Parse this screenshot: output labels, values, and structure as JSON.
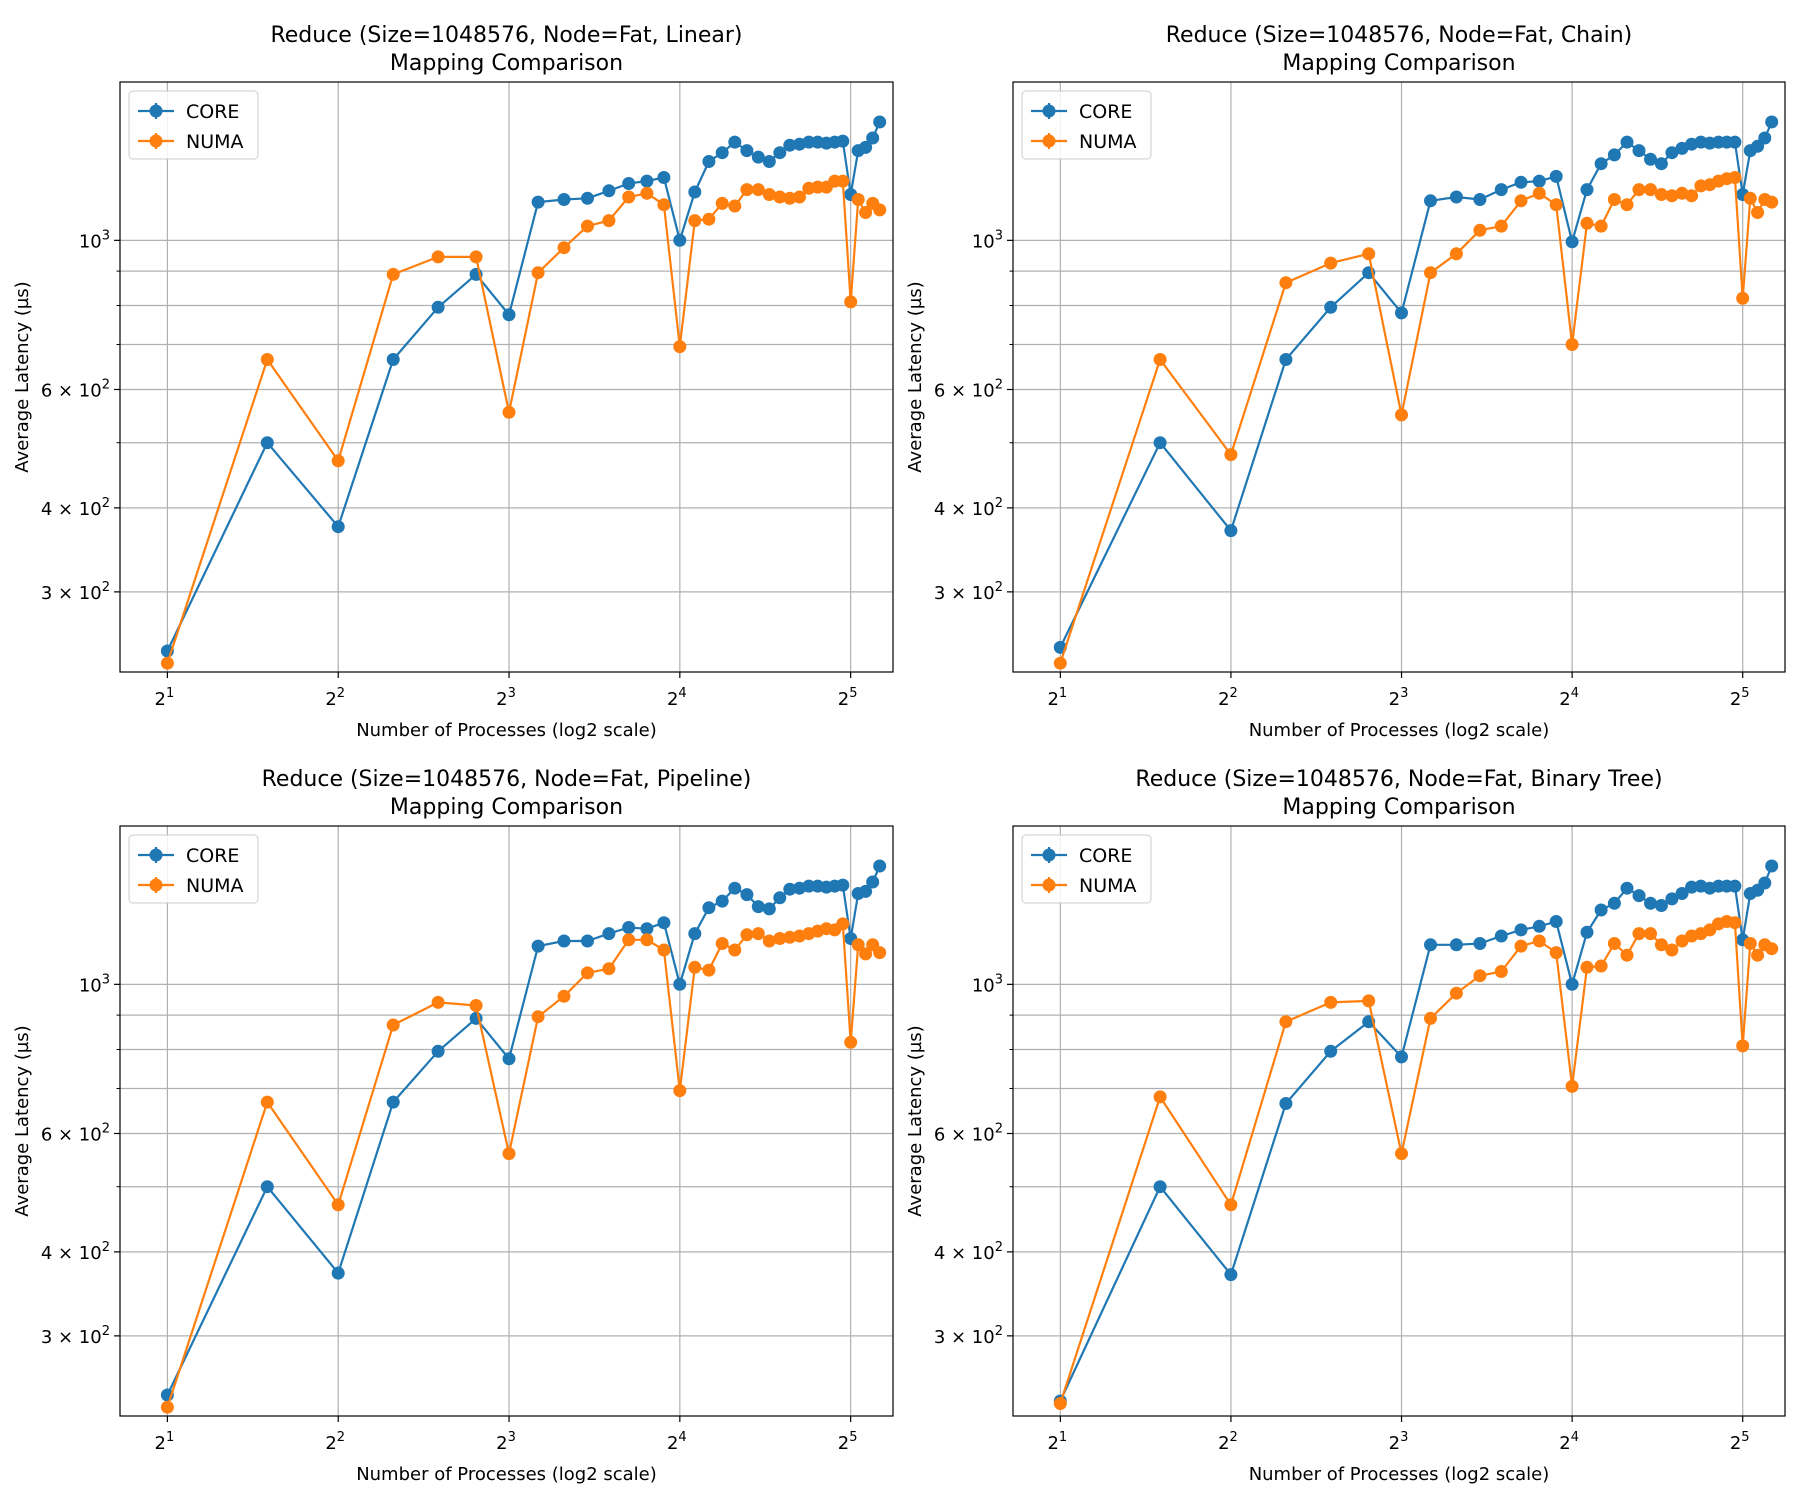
{
  "colors": {
    "CORE": "#1f77b4",
    "NUMA": "#ff7f0e",
    "grid": "#b0b0b0"
  },
  "chart_data": [
    {
      "type": "line",
      "title": "Reduce (Size=1048576, Node=Fat, Linear)",
      "subtitle": "Mapping Comparison",
      "xlabel": "Number of Processes (log2 scale)",
      "ylabel": "Average Latency (µs)",
      "xscale": "log2",
      "yscale": "log10",
      "xlim": [
        1.65,
        38
      ],
      "ylim": [
        228,
        1720
      ],
      "xticks": [
        {
          "v": 2,
          "b": "2",
          "e": "1"
        },
        {
          "v": 4,
          "b": "2",
          "e": "2"
        },
        {
          "v": 8,
          "b": "2",
          "e": "3"
        },
        {
          "v": 16,
          "b": "2",
          "e": "4"
        },
        {
          "v": 32,
          "b": "2",
          "e": "5"
        }
      ],
      "yticks": [
        {
          "v": 300,
          "b": "3 × 10",
          "e": "2"
        },
        {
          "v": 400,
          "b": "4 × 10",
          "e": "2"
        },
        {
          "v": 600,
          "b": "6 × 10",
          "e": "2"
        },
        {
          "v": 1000,
          "b": "10",
          "e": "3"
        }
      ],
      "ygrid": [
        300,
        400,
        500,
        600,
        700,
        800,
        900,
        1000
      ],
      "grid": true,
      "legend": "top-left",
      "x": [
        2,
        3,
        4,
        5,
        6,
        7,
        8,
        9,
        10,
        11,
        12,
        13,
        14,
        15,
        16,
        17,
        18,
        19,
        20,
        21,
        22,
        23,
        24,
        25,
        26,
        27,
        28,
        29,
        30,
        31,
        32,
        33,
        34,
        35,
        36
      ],
      "series": [
        {
          "name": "CORE",
          "values": [
            245,
            500,
            375,
            665,
            795,
            890,
            775,
            1140,
            1150,
            1155,
            1185,
            1215,
            1225,
            1240,
            1000,
            1180,
            1310,
            1350,
            1400,
            1360,
            1330,
            1310,
            1350,
            1385,
            1390,
            1400,
            1400,
            1395,
            1400,
            1405,
            1170,
            1360,
            1375,
            1420,
            1500
          ]
        },
        {
          "name": "NUMA",
          "values": [
            235,
            665,
            470,
            890,
            945,
            945,
            555,
            895,
            975,
            1050,
            1070,
            1160,
            1175,
            1130,
            695,
            1070,
            1075,
            1135,
            1125,
            1190,
            1190,
            1170,
            1160,
            1155,
            1160,
            1195,
            1200,
            1200,
            1225,
            1225,
            810,
            1150,
            1100,
            1135,
            1110
          ]
        }
      ]
    },
    {
      "type": "line",
      "title": "Reduce (Size=1048576, Node=Fat, Chain)",
      "subtitle": "Mapping Comparison",
      "xlabel": "Number of Processes (log2 scale)",
      "ylabel": "Average Latency (µs)",
      "xscale": "log2",
      "yscale": "log10",
      "xlim": [
        1.65,
        38
      ],
      "ylim": [
        228,
        1720
      ],
      "xticks": [
        {
          "v": 2,
          "b": "2",
          "e": "1"
        },
        {
          "v": 4,
          "b": "2",
          "e": "2"
        },
        {
          "v": 8,
          "b": "2",
          "e": "3"
        },
        {
          "v": 16,
          "b": "2",
          "e": "4"
        },
        {
          "v": 32,
          "b": "2",
          "e": "5"
        }
      ],
      "yticks": [
        {
          "v": 300,
          "b": "3 × 10",
          "e": "2"
        },
        {
          "v": 400,
          "b": "4 × 10",
          "e": "2"
        },
        {
          "v": 600,
          "b": "6 × 10",
          "e": "2"
        },
        {
          "v": 1000,
          "b": "10",
          "e": "3"
        }
      ],
      "ygrid": [
        300,
        400,
        500,
        600,
        700,
        800,
        900,
        1000
      ],
      "grid": true,
      "legend": "top-left",
      "x": [
        2,
        3,
        4,
        5,
        6,
        7,
        8,
        9,
        10,
        11,
        12,
        13,
        14,
        15,
        16,
        17,
        18,
        19,
        20,
        21,
        22,
        23,
        24,
        25,
        26,
        27,
        28,
        29,
        30,
        31,
        32,
        33,
        34,
        35,
        36
      ],
      "series": [
        {
          "name": "CORE",
          "values": [
            248,
            500,
            370,
            665,
            795,
            895,
            780,
            1145,
            1160,
            1150,
            1190,
            1220,
            1225,
            1245,
            995,
            1190,
            1300,
            1340,
            1400,
            1360,
            1320,
            1300,
            1350,
            1370,
            1390,
            1400,
            1395,
            1400,
            1400,
            1400,
            1170,
            1360,
            1380,
            1420,
            1500
          ]
        },
        {
          "name": "NUMA",
          "values": [
            235,
            665,
            480,
            865,
            925,
            955,
            550,
            895,
            955,
            1035,
            1050,
            1145,
            1175,
            1130,
            700,
            1060,
            1050,
            1150,
            1130,
            1190,
            1190,
            1170,
            1165,
            1175,
            1165,
            1205,
            1210,
            1225,
            1235,
            1240,
            820,
            1155,
            1100,
            1150,
            1140
          ]
        }
      ]
    },
    {
      "type": "line",
      "title": "Reduce (Size=1048576, Node=Fat, Pipeline)",
      "subtitle": "Mapping Comparison",
      "xlabel": "Number of Processes (log2 scale)",
      "ylabel": "Average Latency (µs)",
      "xscale": "log2",
      "yscale": "log10",
      "xlim": [
        1.65,
        38
      ],
      "ylim": [
        228,
        1720
      ],
      "xticks": [
        {
          "v": 2,
          "b": "2",
          "e": "1"
        },
        {
          "v": 4,
          "b": "2",
          "e": "2"
        },
        {
          "v": 8,
          "b": "2",
          "e": "3"
        },
        {
          "v": 16,
          "b": "2",
          "e": "4"
        },
        {
          "v": 32,
          "b": "2",
          "e": "5"
        }
      ],
      "yticks": [
        {
          "v": 300,
          "b": "3 × 10",
          "e": "2"
        },
        {
          "v": 400,
          "b": "4 × 10",
          "e": "2"
        },
        {
          "v": 600,
          "b": "6 × 10",
          "e": "2"
        },
        {
          "v": 1000,
          "b": "10",
          "e": "3"
        }
      ],
      "ygrid": [
        300,
        400,
        500,
        600,
        700,
        800,
        900,
        1000
      ],
      "grid": true,
      "legend": "top-left",
      "x": [
        2,
        3,
        4,
        5,
        6,
        7,
        8,
        9,
        10,
        11,
        12,
        13,
        14,
        15,
        16,
        17,
        18,
        19,
        20,
        21,
        22,
        23,
        24,
        25,
        26,
        27,
        28,
        29,
        30,
        31,
        32,
        33,
        34,
        35,
        36
      ],
      "series": [
        {
          "name": "CORE",
          "values": [
            245,
            500,
            372,
            668,
            795,
            890,
            775,
            1140,
            1160,
            1160,
            1190,
            1215,
            1210,
            1235,
            1000,
            1190,
            1300,
            1330,
            1390,
            1360,
            1305,
            1295,
            1345,
            1385,
            1390,
            1400,
            1400,
            1395,
            1400,
            1405,
            1170,
            1365,
            1375,
            1420,
            1500
          ]
        },
        {
          "name": "NUMA",
          "values": [
            235,
            668,
            470,
            870,
            940,
            930,
            560,
            895,
            960,
            1040,
            1055,
            1165,
            1165,
            1125,
            695,
            1060,
            1050,
            1150,
            1125,
            1185,
            1190,
            1160,
            1170,
            1175,
            1180,
            1190,
            1200,
            1210,
            1205,
            1230,
            820,
            1145,
            1110,
            1145,
            1115
          ]
        }
      ]
    },
    {
      "type": "line",
      "title": "Reduce (Size=1048576, Node=Fat, Binary Tree)",
      "subtitle": "Mapping Comparison",
      "xlabel": "Number of Processes (log2 scale)",
      "ylabel": "Average Latency (µs)",
      "xscale": "log2",
      "yscale": "log10",
      "xlim": [
        1.65,
        38
      ],
      "ylim": [
        228,
        1720
      ],
      "xticks": [
        {
          "v": 2,
          "b": "2",
          "e": "1"
        },
        {
          "v": 4,
          "b": "2",
          "e": "2"
        },
        {
          "v": 8,
          "b": "2",
          "e": "3"
        },
        {
          "v": 16,
          "b": "2",
          "e": "4"
        },
        {
          "v": 32,
          "b": "2",
          "e": "5"
        }
      ],
      "yticks": [
        {
          "v": 300,
          "b": "3 × 10",
          "e": "2"
        },
        {
          "v": 400,
          "b": "4 × 10",
          "e": "2"
        },
        {
          "v": 600,
          "b": "6 × 10",
          "e": "2"
        },
        {
          "v": 1000,
          "b": "10",
          "e": "3"
        }
      ],
      "ygrid": [
        300,
        400,
        500,
        600,
        700,
        800,
        900,
        1000
      ],
      "grid": true,
      "legend": "top-left",
      "x": [
        2,
        3,
        4,
        5,
        6,
        7,
        8,
        9,
        10,
        11,
        12,
        13,
        14,
        15,
        16,
        17,
        18,
        19,
        20,
        21,
        22,
        23,
        24,
        25,
        26,
        27,
        28,
        29,
        30,
        31,
        32,
        33,
        34,
        35,
        36
      ],
      "series": [
        {
          "name": "CORE",
          "values": [
            240,
            500,
            370,
            665,
            795,
            880,
            780,
            1145,
            1145,
            1150,
            1180,
            1205,
            1220,
            1240,
            1000,
            1195,
            1290,
            1320,
            1390,
            1355,
            1320,
            1310,
            1340,
            1365,
            1395,
            1400,
            1390,
            1400,
            1400,
            1400,
            1165,
            1365,
            1380,
            1415,
            1500
          ]
        },
        {
          "name": "NUMA",
          "values": [
            238,
            680,
            470,
            880,
            940,
            945,
            560,
            890,
            970,
            1030,
            1045,
            1140,
            1160,
            1115,
            705,
            1060,
            1065,
            1150,
            1105,
            1190,
            1190,
            1145,
            1125,
            1160,
            1180,
            1190,
            1205,
            1230,
            1240,
            1235,
            810,
            1150,
            1105,
            1145,
            1130
          ]
        }
      ]
    }
  ]
}
